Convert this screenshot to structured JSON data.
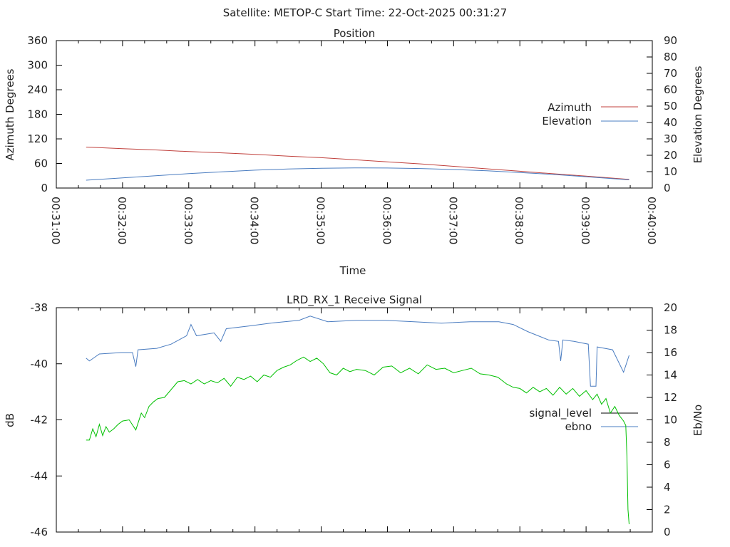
{
  "header": {
    "title": "Satellite: METOP-C    Start Time: 22-Oct-2025 00:31:27"
  },
  "colors": {
    "azimuth": "#c0403c",
    "elevation": "#4a7cc0",
    "ebno_line": "#00c000",
    "signal_line": "#4a7cc0",
    "legend_signal": "#000000",
    "legend_ebno": "#4a7cc0"
  },
  "chart_data": [
    {
      "type": "line",
      "title": "Position",
      "xlabel": "Time",
      "ylabel": "Azimuth Degrees",
      "y2label": "Elevation Degrees",
      "xlim_seconds_after": "00:31:00",
      "xlim": [
        0,
        540
      ],
      "ylim": [
        0,
        360
      ],
      "y2lim": [
        0,
        90
      ],
      "grid": false,
      "legend_placement": "right",
      "x_tick_labels": [
        "00:31:00",
        "00:32:00",
        "00:33:00",
        "00:34:00",
        "00:35:00",
        "00:36:00",
        "00:37:00",
        "00:38:00",
        "00:39:00",
        "00:40:00"
      ],
      "y_tick_labels": [
        "0",
        "60",
        "120",
        "180",
        "240",
        "300",
        "360"
      ],
      "y2_tick_labels": [
        "0",
        "10",
        "20",
        "30",
        "40",
        "50",
        "60",
        "70",
        "80",
        "90"
      ],
      "series": [
        {
          "name": "Azimuth",
          "axis": "y",
          "x": [
            27,
            60,
            90,
            120,
            150,
            180,
            210,
            240,
            270,
            300,
            330,
            360,
            390,
            420,
            450,
            480,
            519
          ],
          "values": [
            100,
            96,
            93,
            89,
            86,
            82,
            78,
            74,
            69,
            64,
            59,
            53,
            47,
            41,
            35,
            29,
            21
          ]
        },
        {
          "name": "Elevation",
          "axis": "y2",
          "x": [
            27,
            60,
            90,
            120,
            150,
            180,
            210,
            240,
            270,
            300,
            330,
            360,
            390,
            420,
            450,
            480,
            519
          ],
          "values": [
            4.8,
            6.2,
            7.5,
            8.8,
            9.9,
            10.9,
            11.6,
            12.1,
            12.3,
            12.2,
            11.9,
            11.3,
            10.5,
            9.5,
            8.3,
            6.9,
            5.0
          ]
        }
      ]
    },
    {
      "type": "line",
      "title": "LRD_RX_1 Receive Signal",
      "xlabel": "",
      "ylabel": "dB",
      "y2label": "Eb/No",
      "xlim": [
        0,
        540
      ],
      "ylim": [
        -46,
        -38
      ],
      "y2lim": [
        0,
        20
      ],
      "grid": false,
      "legend_placement": "right",
      "y_tick_labels": [
        "-46",
        "-44",
        "-42",
        "-40",
        "-38"
      ],
      "y2_tick_labels": [
        "0",
        "2",
        "4",
        "6",
        "8",
        "10",
        "12",
        "14",
        "16",
        "18",
        "20"
      ],
      "series": [
        {
          "name": "signal_level",
          "axis": "y",
          "x": [
            27,
            30,
            39,
            59,
            69,
            72,
            74,
            91,
            104,
            118,
            122,
            127,
            143,
            149,
            154,
            175,
            194,
            220,
            230,
            246,
            272,
            298,
            324,
            349,
            375,
            401,
            414,
            427,
            446,
            455,
            457,
            459,
            469,
            482,
            484,
            489,
            490,
            504,
            514,
            519
          ],
          "values": [
            -39.8,
            -39.9,
            -39.65,
            -39.6,
            -39.6,
            -40.1,
            -39.5,
            -39.45,
            -39.3,
            -39.0,
            -38.6,
            -39.0,
            -38.9,
            -39.2,
            -38.75,
            -38.65,
            -38.55,
            -38.45,
            -38.3,
            -38.5,
            -38.45,
            -38.45,
            -38.5,
            -38.55,
            -38.5,
            -38.5,
            -38.6,
            -38.85,
            -39.15,
            -39.2,
            -39.9,
            -39.15,
            -39.2,
            -39.3,
            -40.8,
            -40.8,
            -39.4,
            -39.5,
            -40.3,
            -39.7
          ]
        },
        {
          "name": "ebno",
          "axis": "y2",
          "x": [
            27,
            30,
            33,
            36,
            39,
            42,
            45,
            48,
            52,
            56,
            60,
            66,
            72,
            77,
            80,
            84,
            88,
            92,
            98,
            104,
            110,
            116,
            122,
            128,
            134,
            140,
            146,
            152,
            158,
            164,
            170,
            176,
            182,
            188,
            194,
            200,
            206,
            212,
            218,
            224,
            230,
            236,
            242,
            248,
            254,
            260,
            266,
            272,
            280,
            288,
            296,
            304,
            312,
            320,
            328,
            336,
            344,
            352,
            360,
            368,
            376,
            384,
            392,
            400,
            408,
            414,
            420,
            426,
            432,
            438,
            444,
            450,
            456,
            462,
            468,
            474,
            480,
            486,
            490,
            494,
            498,
            502,
            506,
            510,
            514,
            516,
            517,
            518,
            519
          ],
          "values": [
            8.2,
            8.2,
            9.2,
            8.5,
            9.6,
            8.6,
            9.4,
            8.9,
            9.2,
            9.6,
            9.9,
            10.0,
            9.1,
            10.6,
            10.2,
            11.2,
            11.6,
            11.9,
            12.0,
            12.7,
            13.4,
            13.5,
            13.2,
            13.6,
            13.2,
            13.5,
            13.3,
            13.7,
            13.0,
            13.8,
            13.6,
            13.9,
            13.4,
            14.0,
            13.8,
            14.4,
            14.7,
            14.9,
            15.3,
            15.6,
            15.2,
            15.5,
            15.0,
            14.2,
            14.0,
            14.6,
            14.3,
            14.5,
            14.4,
            14.0,
            14.7,
            14.8,
            14.2,
            14.6,
            14.1,
            14.9,
            14.5,
            14.6,
            14.2,
            14.4,
            14.6,
            14.1,
            14.0,
            13.8,
            13.2,
            12.9,
            12.8,
            12.4,
            12.9,
            12.5,
            12.8,
            12.2,
            12.9,
            12.3,
            12.8,
            12.1,
            12.6,
            11.8,
            12.3,
            11.4,
            11.9,
            10.6,
            11.2,
            10.4,
            9.9,
            9.5,
            6.8,
            2.0,
            0.7
          ]
        }
      ]
    }
  ]
}
